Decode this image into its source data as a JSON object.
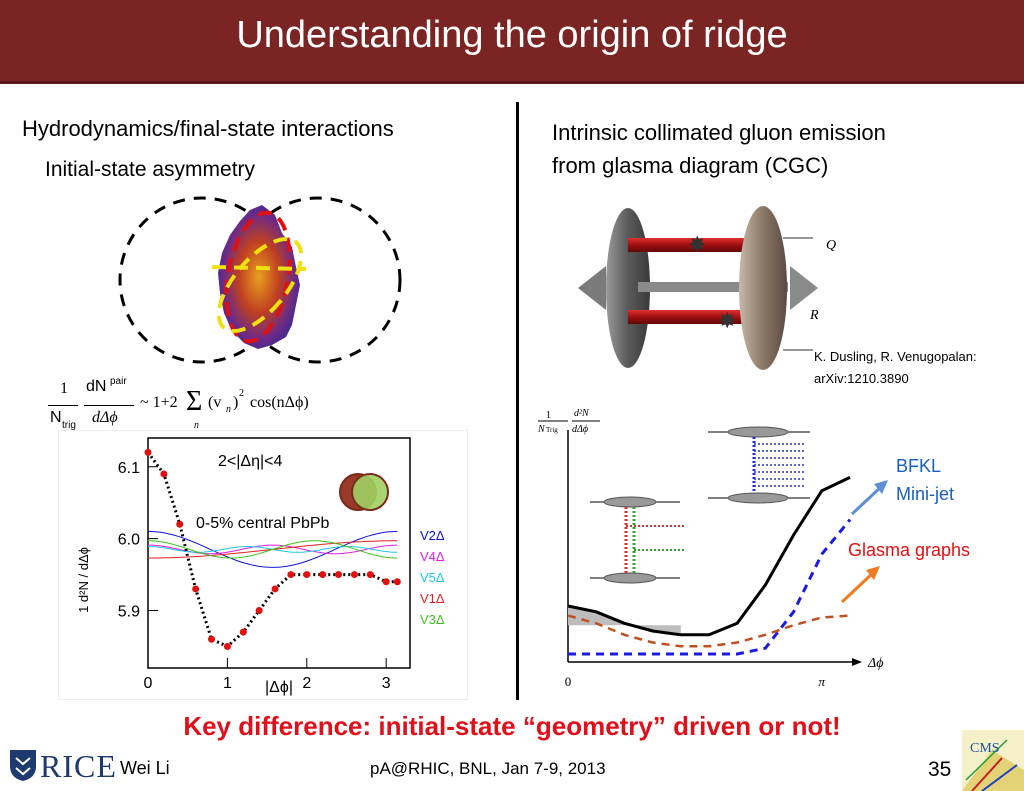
{
  "title": "Understanding the origin of ridge",
  "left": {
    "heading": "Hydrodynamics/final-state interactions",
    "subheading": "Initial-state asymmetry",
    "formula": {
      "one": "1",
      "dN": "dN",
      "pair": "pair",
      "N": "N",
      "trig": "trig",
      "dphi": "dΔϕ",
      "rhs": "~ 1+2",
      "sigma": "Σ",
      "vn": "(v",
      "n_sub": "n",
      "sq": ")",
      "two": "2",
      "cos": "cos(nΔϕ)",
      "sum_index": "n"
    },
    "plot": {
      "eta_label": "2<|Δη|<4",
      "centrality": "0-5% central PbPb",
      "xlabel": "|Δϕ|",
      "legend": [
        {
          "label": "V2Δ",
          "color": "#1010e0"
        },
        {
          "label": "V4Δ",
          "color": "#e020e0"
        },
        {
          "label": "V5Δ",
          "color": "#20c8e0"
        },
        {
          "label": "V1Δ",
          "color": "#e02020"
        },
        {
          "label": "V3Δ",
          "color": "#40c020"
        }
      ]
    }
  },
  "right": {
    "heading_line1": "Intrinsic collimated gluon emission",
    "heading_line2": "from glasma diagram (CGC)",
    "ref_line1": "K. Dusling, R. Venugopalan:",
    "ref_line2": "arXiv:1210.3890",
    "diagram": {
      "label_q": "Q",
      "label_r": "R"
    },
    "plot": {
      "ylabel_num": "1",
      "ylabel_den": "N",
      "ylabel_trig": "Trig",
      "ylabel_d2n": "d²N",
      "ylabel_ddphi": "dΔϕ",
      "xlabel": "Δϕ",
      "x0": "0",
      "xpi": "π",
      "bfkl_line1": "BFKL",
      "bfkl_line2": "Mini-jet",
      "glasma": "Glasma graphs"
    }
  },
  "key_difference": "Key difference: initial-state “geometry” driven or not!",
  "footer": {
    "logo_text": "RICE",
    "author": "Wei Li",
    "conference": "pA@RHIC, BNL, Jan 7-9, 2013",
    "page": "35",
    "cms_logo": "CMS"
  },
  "chart_data": [
    {
      "type": "line",
      "xlabel": "|Δϕ|",
      "ylabel": "1/N_trig d²N^pair/dΔϕ",
      "xlim": [
        0,
        3.3
      ],
      "ylim": [
        5.82,
        6.14
      ],
      "xticks": [
        "0",
        "1",
        "2",
        "3"
      ],
      "yticks": [
        "5.9",
        "6.0",
        "6.1"
      ],
      "series": [
        {
          "name": "",
          "x": [
            0,
            0.2,
            0.4,
            0.6,
            0.8,
            1.0,
            1.2,
            1.4,
            1.6,
            1.8,
            2.0,
            2.2,
            2.4,
            2.6,
            2.8,
            3.0,
            3.14
          ],
          "y": [
            6.12,
            6.09,
            6.02,
            5.93,
            5.86,
            5.85,
            5.87,
            5.9,
            5.93,
            5.95,
            5.95,
            5.95,
            5.95,
            5.95,
            5.95,
            5.94,
            5.94
          ]
        }
      ]
    },
    {
      "type": "line",
      "xlabel": "Δϕ",
      "xticks": [
        "0",
        "π"
      ],
      "series": [
        {
          "name": "",
          "x": [
            0,
            0.3,
            0.6,
            0.9,
            1.2,
            1.5,
            1.8,
            2.1,
            2.4,
            2.7,
            3.0
          ],
          "y": [
            0.25,
            0.22,
            0.16,
            0.12,
            0.1,
            0.1,
            0.16,
            0.36,
            0.62,
            0.85,
            0.92
          ]
        },
        {
          "name": "",
          "x": [
            0,
            0.3,
            0.6,
            0.9,
            1.2,
            1.5,
            1.8,
            2.1,
            2.4,
            2.7,
            3.0
          ],
          "y": [
            0.0,
            0.0,
            0.0,
            0.0,
            0.0,
            0.0,
            0.0,
            0.03,
            0.22,
            0.52,
            0.7
          ]
        },
        {
          "name": "",
          "x": [
            0,
            0.3,
            0.6,
            0.9,
            1.2,
            1.5,
            1.8,
            2.1,
            2.4,
            2.7,
            3.0
          ],
          "y": [
            0.2,
            0.16,
            0.1,
            0.06,
            0.04,
            0.04,
            0.06,
            0.1,
            0.15,
            0.19,
            0.2
          ]
        }
      ]
    }
  ]
}
